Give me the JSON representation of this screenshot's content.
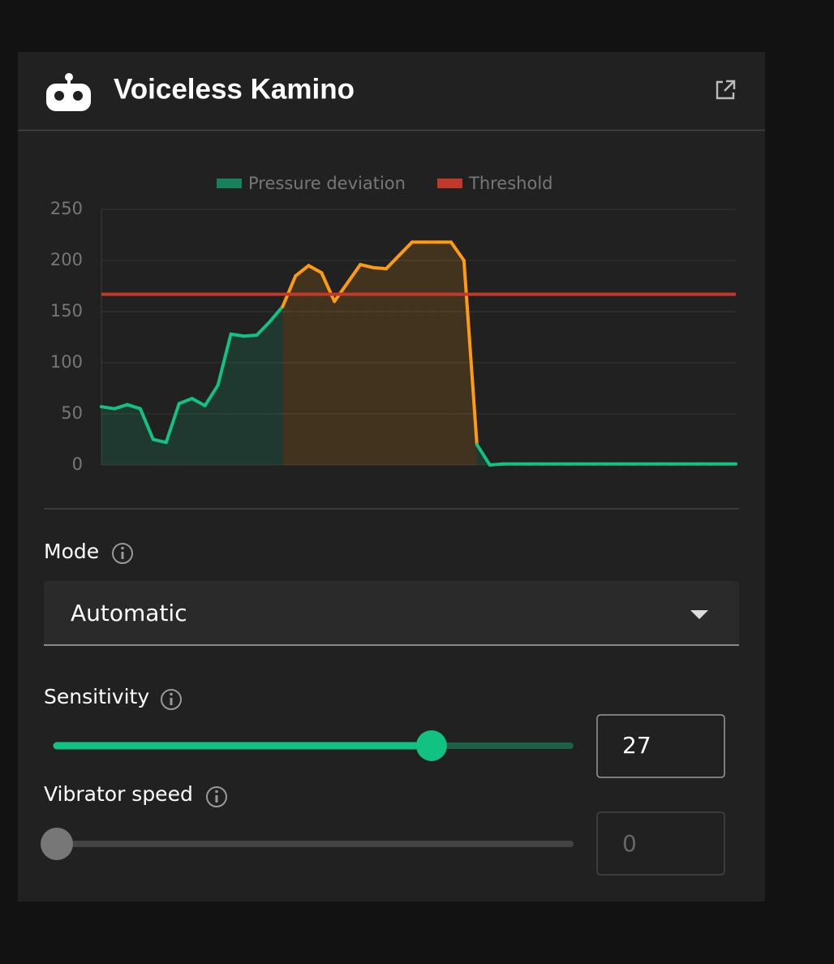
{
  "header": {
    "title": "Voiceless Kamino"
  },
  "chart_data": {
    "type": "line",
    "series": [
      {
        "name": "Pressure deviation",
        "color": "#12c283",
        "values": [
          57,
          55,
          59,
          55,
          25,
          22,
          60,
          65,
          58,
          78,
          128,
          126,
          127,
          140,
          155,
          185,
          195,
          188,
          160,
          178,
          196,
          193,
          192,
          205,
          218,
          218,
          218,
          218,
          200,
          20,
          0,
          1,
          1,
          1,
          1,
          1,
          1,
          1,
          1,
          1,
          1,
          1,
          1,
          1,
          1,
          1,
          1,
          1,
          1,
          1
        ]
      },
      {
        "name": "Threshold",
        "color": "#c0392b",
        "values": [
          167,
          167,
          167,
          167,
          167,
          167,
          167,
          167,
          167,
          167,
          167,
          167,
          167,
          167,
          167,
          167,
          167,
          167,
          167,
          167,
          167,
          167,
          167,
          167,
          167,
          167,
          167,
          167,
          167,
          167,
          167,
          167,
          167,
          167,
          167,
          167,
          167,
          167,
          167,
          167,
          167,
          167,
          167,
          167,
          167,
          167,
          167,
          167,
          167,
          167
        ]
      }
    ],
    "above_threshold_color": "#ff9b10",
    "ylim": [
      0,
      250
    ],
    "yticks": [
      0,
      50,
      100,
      150,
      200,
      250
    ],
    "grid": true
  },
  "controls": {
    "mode": {
      "label": "Mode",
      "value": "Automatic"
    },
    "sensitivity": {
      "label": "Sensitivity",
      "value": 27,
      "range": [
        0,
        37
      ],
      "color": "#12c283"
    },
    "vibrator_speed": {
      "label": "Vibrator speed",
      "value": 0,
      "range": [
        0,
        100
      ]
    }
  }
}
